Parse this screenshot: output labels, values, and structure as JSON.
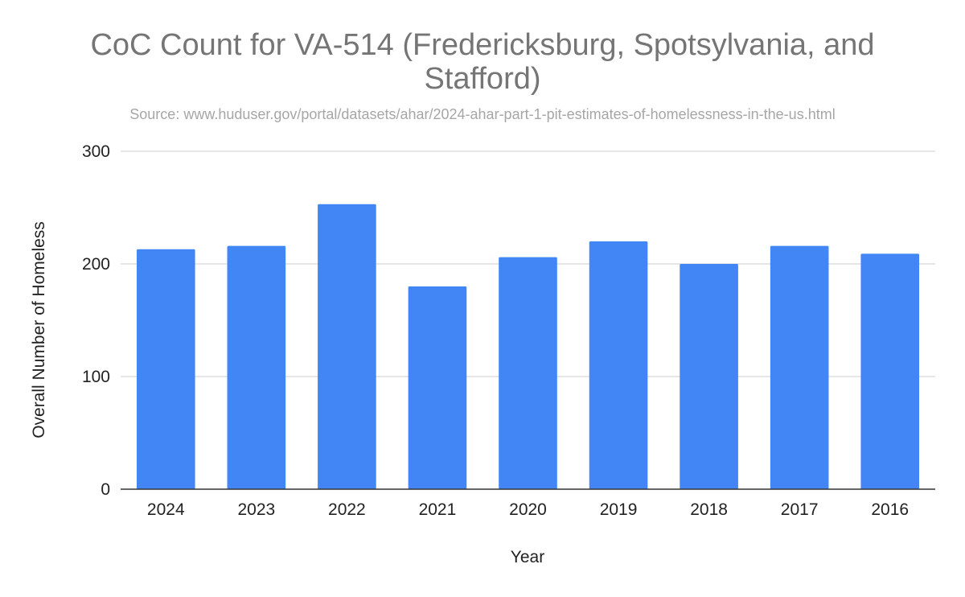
{
  "chart_data": {
    "type": "bar",
    "title_lines": [
      "CoC Count for VA-514 (Fredericksburg, Spotsylvania, and",
      "Stafford)"
    ],
    "subtitle": "Source: www.huduser.gov/portal/datasets/ahar/2024-ahar-part-1-pit-estimates-of-homelessness-in-the-us.html",
    "xlabel": "Year",
    "ylabel": "Overall Number of Homeless",
    "categories": [
      "2024",
      "2023",
      "2022",
      "2021",
      "2020",
      "2019",
      "2018",
      "2017",
      "2016"
    ],
    "values": [
      213,
      216,
      253,
      180,
      206,
      220,
      200,
      216,
      209
    ],
    "ylim": [
      0,
      300
    ],
    "yticks": [
      0,
      100,
      200,
      300
    ],
    "grid": true,
    "legend": "none",
    "bar_color": "#4285f4"
  }
}
